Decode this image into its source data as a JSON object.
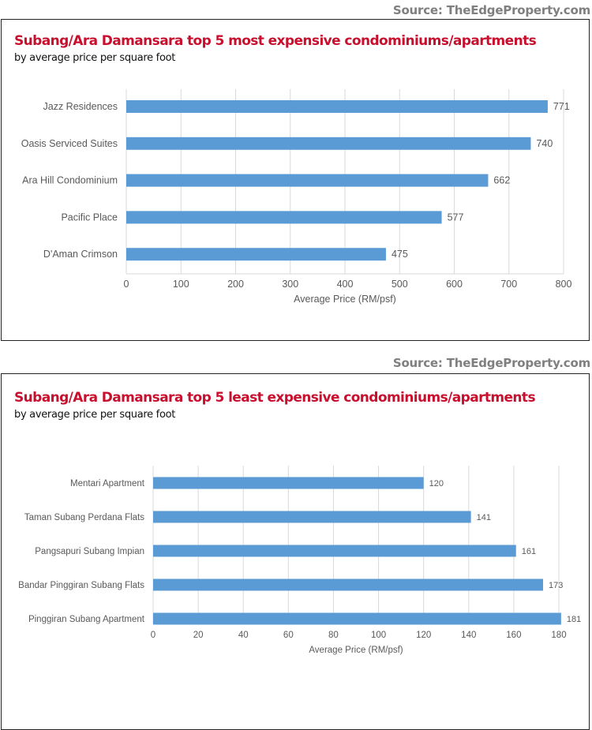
{
  "source_text": "Source: TheEdgeProperty.com",
  "chart_data": [
    {
      "type": "bar",
      "orientation": "horizontal",
      "title": "Subang/Ara Damansara top 5 most expensive condominiums/apartments",
      "subtitle": "by average price per square foot",
      "categories": [
        "Jazz Residences",
        "Oasis Serviced Suites",
        "Ara Hill Condominium",
        "Pacific Place",
        "D'Aman Crimson"
      ],
      "values": [
        771,
        740,
        662,
        577,
        475
      ],
      "xlabel": "Average Price (RM/psf)",
      "ylabel": "",
      "xlim": [
        0,
        800
      ],
      "ticks": [
        0,
        100,
        200,
        300,
        400,
        500,
        600,
        700,
        800
      ],
      "grid": true,
      "data_labels": true,
      "bar_color": "#5b9bd5"
    },
    {
      "type": "bar",
      "orientation": "horizontal",
      "title": "Subang/Ara Damansara top 5 least expensive condominiums/apartments",
      "subtitle": "by average price per square foot",
      "categories": [
        "Mentari Apartment",
        "Taman Subang Perdana Flats",
        "Pangsapuri Subang Impian",
        "Bandar Pinggiran Subang Flats",
        "Pinggiran Subang Apartment"
      ],
      "values": [
        120,
        141,
        161,
        173,
        181
      ],
      "xlabel": "Average Price (RM/psf)",
      "ylabel": "",
      "xlim": [
        0,
        180
      ],
      "ticks": [
        0,
        20,
        40,
        60,
        80,
        100,
        120,
        140,
        160,
        180
      ],
      "grid": true,
      "data_labels": true,
      "bar_color": "#5b9bd5"
    }
  ]
}
